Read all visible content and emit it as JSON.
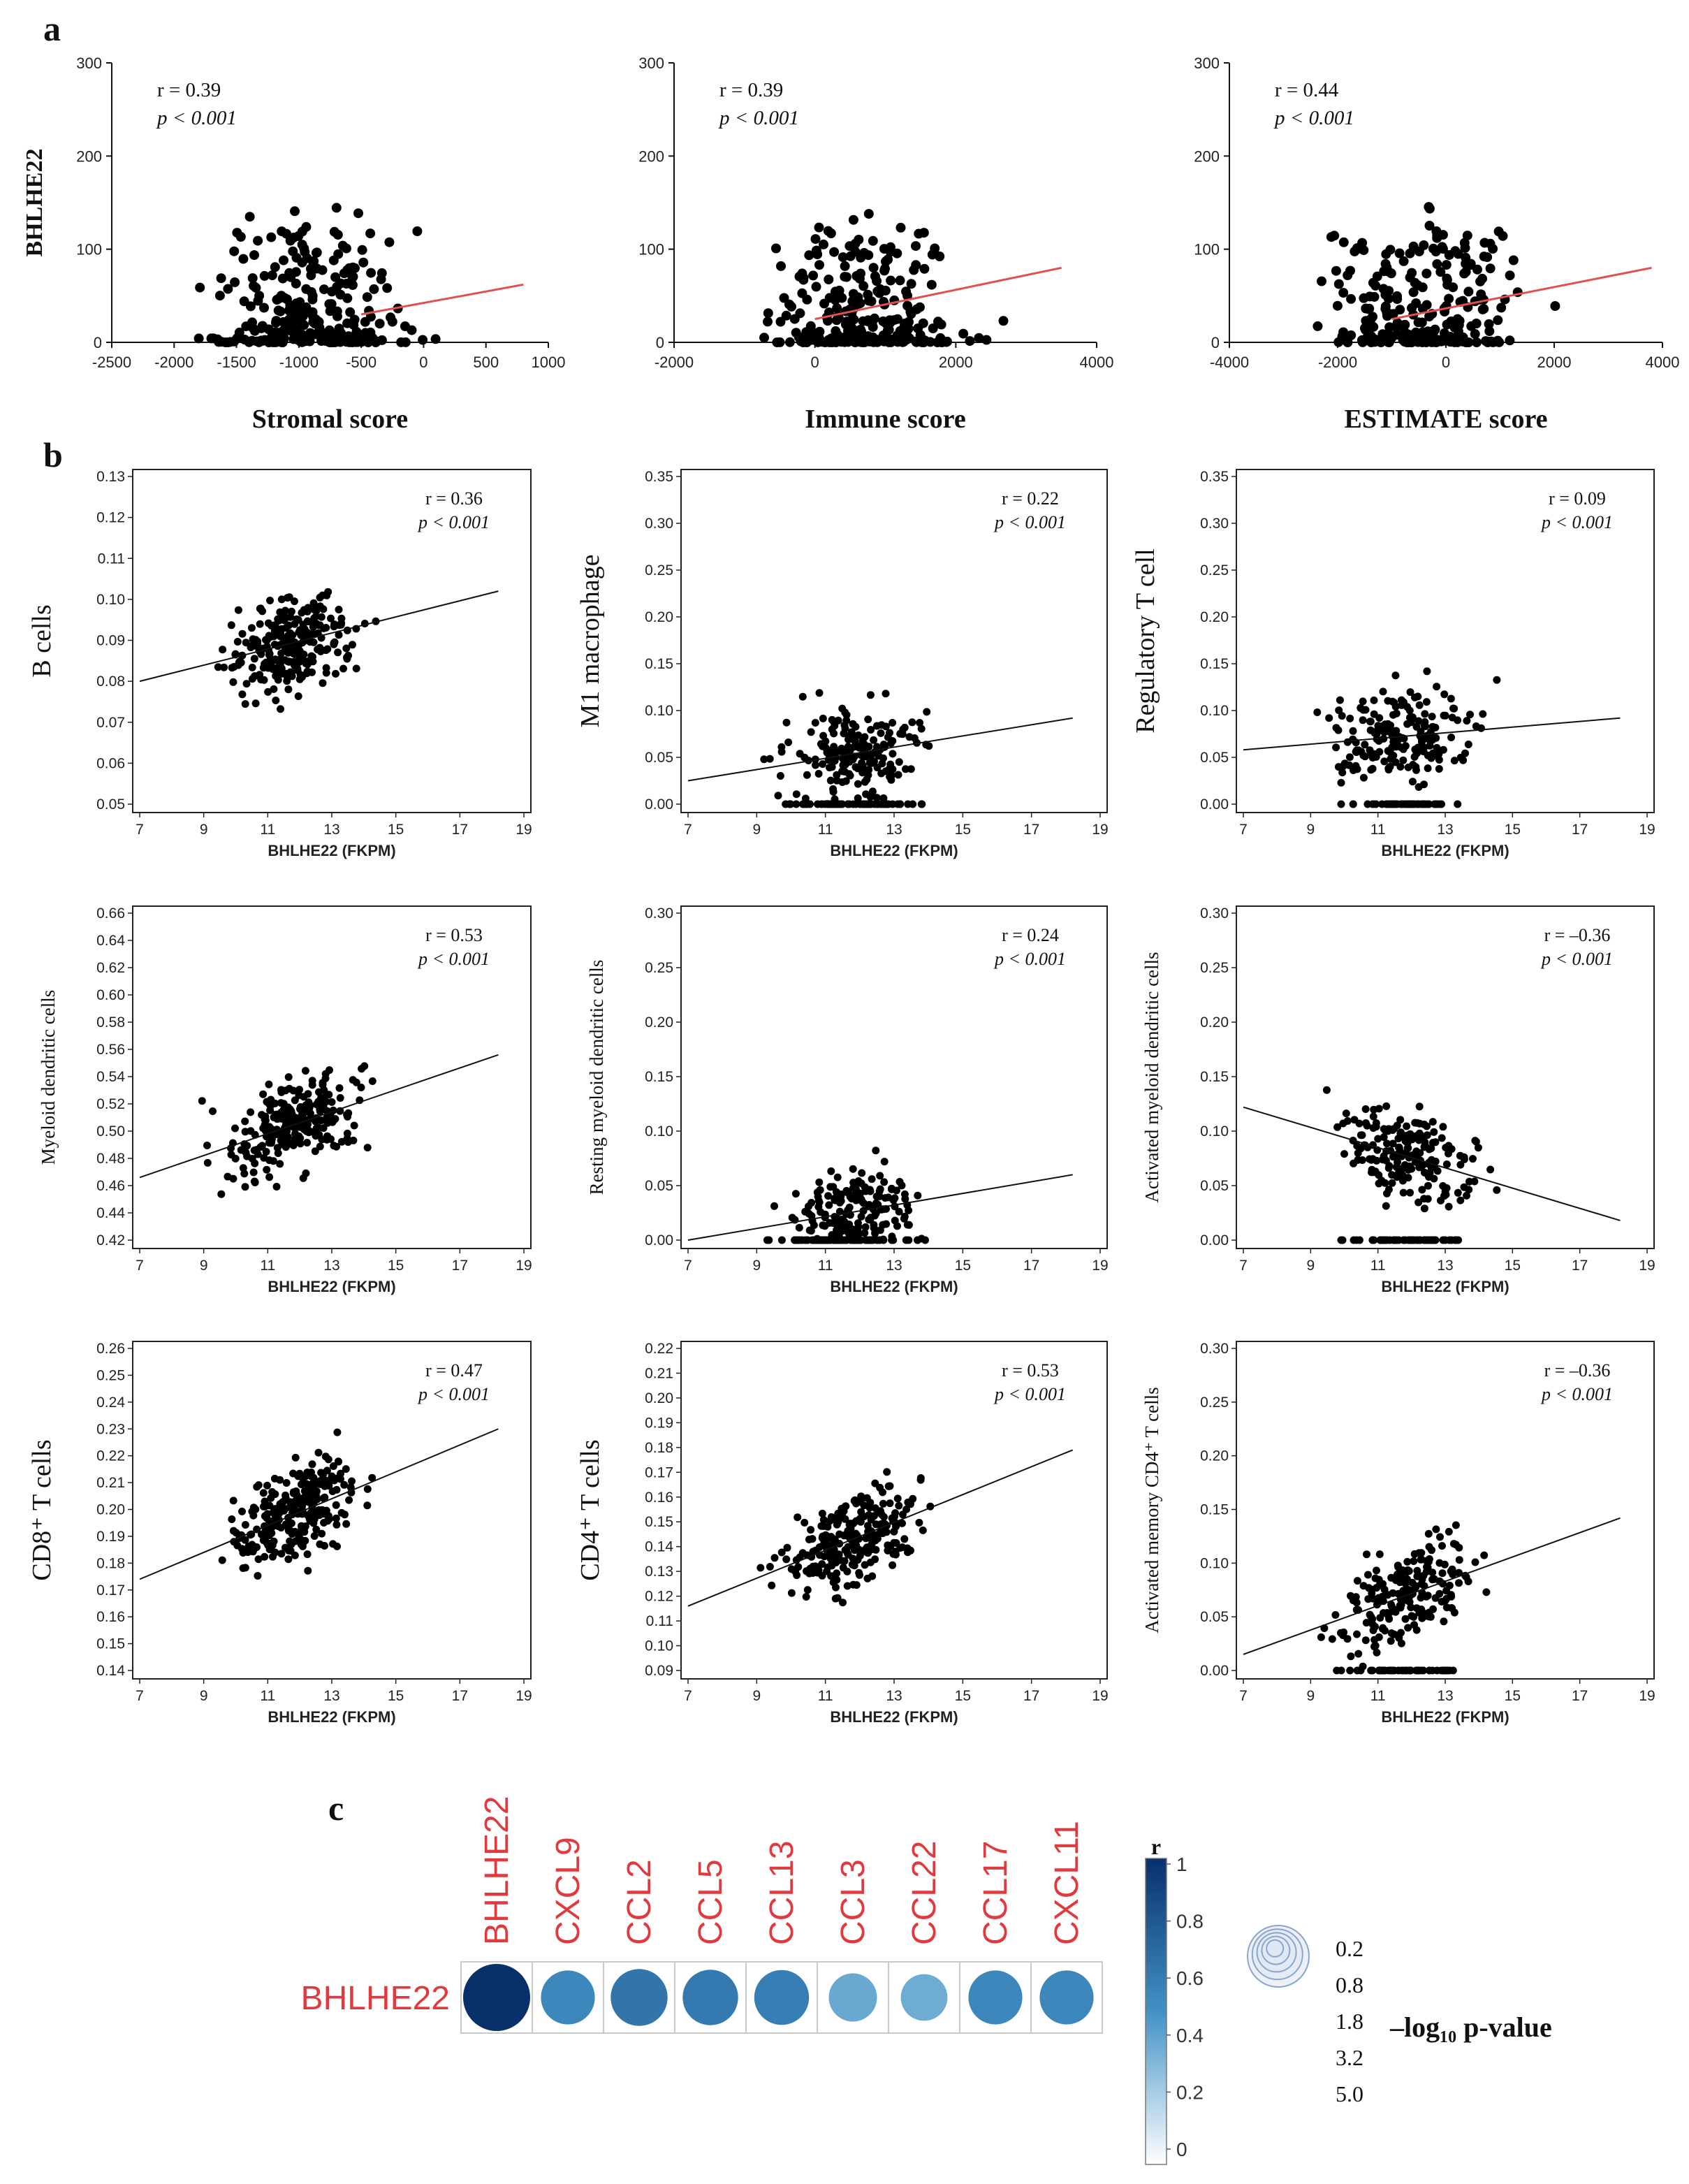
{
  "figure": {
    "panel_labels": [
      "a",
      "b",
      "c"
    ]
  },
  "chart_data": [
    {
      "id": "a1",
      "panel": "a",
      "type": "scatter",
      "xlabel": "Stromal score",
      "ylabel": "BHLHE22",
      "xlim": [
        -2500,
        1000
      ],
      "ylim": [
        0,
        300
      ],
      "xticks": [
        "-2500",
        "-2000",
        "-1500",
        "-1000",
        "-500",
        "0",
        "500",
        "1000"
      ],
      "yticks": [
        "0",
        "100",
        "200",
        "300"
      ],
      "stats": {
        "r": "r = 0.39",
        "p": "p < 0.001"
      },
      "fit": {
        "x": [
          -500,
          800
        ],
        "y": [
          30,
          62
        ],
        "color": "#e05050"
      }
    },
    {
      "id": "a2",
      "panel": "a",
      "type": "scatter",
      "xlabel": "Immune score",
      "ylabel": "",
      "xlim": [
        -2000,
        4000
      ],
      "ylim": [
        0,
        300
      ],
      "xticks": [
        "-2000",
        "0",
        "2000",
        "4000"
      ],
      "yticks": [
        "0",
        "100",
        "200",
        "300"
      ],
      "stats": {
        "r": "r = 0.39",
        "p": "p < 0.001"
      },
      "fit": {
        "x": [
          0,
          3500
        ],
        "y": [
          25,
          80
        ],
        "color": "#e05050"
      }
    },
    {
      "id": "a3",
      "panel": "a",
      "type": "scatter",
      "xlabel": "ESTIMATE score",
      "ylabel": "",
      "xlim": [
        -4000,
        4000
      ],
      "ylim": [
        0,
        300
      ],
      "xticks": [
        "-4000",
        "-2000",
        "0",
        "2000",
        "4000"
      ],
      "yticks": [
        "0",
        "100",
        "200",
        "300"
      ],
      "stats": {
        "r": "r = 0.44",
        "p": "p < 0.001"
      },
      "fit": {
        "x": [
          -1000,
          3800
        ],
        "y": [
          25,
          80
        ],
        "color": "#e05050"
      }
    },
    {
      "id": "b1",
      "panel": "b",
      "type": "scatter",
      "xlabel": "BHLHE22 (FKPM)",
      "ylabel": "B cells",
      "xlim": [
        7,
        19
      ],
      "ylim": [
        0.05,
        0.13
      ],
      "xticks": [
        "7",
        "9",
        "11",
        "13",
        "15",
        "17",
        "19"
      ],
      "yticks": [
        "0.05",
        "0.06",
        "0.07",
        "0.08",
        "0.09",
        "0.10",
        "0.11",
        "0.12",
        "0.13"
      ],
      "stats": {
        "r": "r = 0.36",
        "p": "p < 0.001"
      },
      "fit": {
        "x": [
          7,
          18.2
        ],
        "y": [
          0.08,
          0.102
        ],
        "color": "#111111"
      }
    },
    {
      "id": "b2",
      "panel": "b",
      "type": "scatter",
      "xlabel": "BHLHE22 (FKPM)",
      "ylabel": "M1 macrophage",
      "xlim": [
        7,
        19
      ],
      "ylim": [
        0,
        0.35
      ],
      "xticks": [
        "7",
        "9",
        "11",
        "13",
        "15",
        "17",
        "19"
      ],
      "yticks": [
        "0.00",
        "0.05",
        "0.10",
        "0.15",
        "0.20",
        "0.25",
        "0.30",
        "0.35"
      ],
      "stats": {
        "r": "r = 0.22",
        "p": "p < 0.001"
      },
      "fit": {
        "x": [
          7,
          18.2
        ],
        "y": [
          0.025,
          0.092
        ],
        "color": "#111111"
      }
    },
    {
      "id": "b3",
      "panel": "b",
      "type": "scatter",
      "xlabel": "BHLHE22 (FKPM)",
      "ylabel": "Regulatory T cell",
      "xlim": [
        7,
        19
      ],
      "ylim": [
        0,
        0.35
      ],
      "xticks": [
        "7",
        "9",
        "11",
        "13",
        "15",
        "17",
        "19"
      ],
      "yticks": [
        "0.00",
        "0.05",
        "0.10",
        "0.15",
        "0.20",
        "0.25",
        "0.30",
        "0.35"
      ],
      "stats": {
        "r": "r = 0.09",
        "p": "p < 0.001"
      },
      "fit": {
        "x": [
          7,
          18.2
        ],
        "y": [
          0.058,
          0.092
        ],
        "color": "#111111"
      }
    },
    {
      "id": "b4",
      "panel": "b",
      "type": "scatter",
      "xlabel": "BHLHE22 (FKPM)",
      "ylabel": "Myeloid dendritic cells",
      "xlim": [
        7,
        19
      ],
      "ylim": [
        0.42,
        0.66
      ],
      "xticks": [
        "7",
        "9",
        "11",
        "13",
        "15",
        "17",
        "19"
      ],
      "yticks": [
        "0.42",
        "0.44",
        "0.46",
        "0.48",
        "0.50",
        "0.52",
        "0.54",
        "0.56",
        "0.58",
        "0.60",
        "0.62",
        "0.64",
        "0.66"
      ],
      "stats": {
        "r": "r = 0.53",
        "p": "p < 0.001"
      },
      "fit": {
        "x": [
          7,
          18.2
        ],
        "y": [
          0.466,
          0.556
        ],
        "color": "#111111"
      }
    },
    {
      "id": "b5",
      "panel": "b",
      "type": "scatter",
      "xlabel": "BHLHE22 (FKPM)",
      "ylabel": "Resting myeloid dendritic cells",
      "xlim": [
        7,
        19
      ],
      "ylim": [
        0,
        0.3
      ],
      "xticks": [
        "7",
        "9",
        "11",
        "13",
        "15",
        "17",
        "19"
      ],
      "yticks": [
        "0.00",
        "0.05",
        "0.10",
        "0.15",
        "0.20",
        "0.25",
        "0.30"
      ],
      "stats": {
        "r": "r = 0.24",
        "p": "p < 0.001"
      },
      "fit": {
        "x": [
          7,
          18.2
        ],
        "y": [
          -0.005,
          0.06
        ],
        "color": "#111111"
      }
    },
    {
      "id": "b6",
      "panel": "b",
      "type": "scatter",
      "xlabel": "BHLHE22 (FKPM)",
      "ylabel": "Activated myeloid dendritic cells",
      "xlim": [
        7,
        19
      ],
      "ylim": [
        0,
        0.3
      ],
      "xticks": [
        "7",
        "9",
        "11",
        "13",
        "15",
        "17",
        "19"
      ],
      "yticks": [
        "0.00",
        "0.05",
        "0.10",
        "0.15",
        "0.20",
        "0.25",
        "0.30"
      ],
      "stats": {
        "r": "r = –0.36",
        "p": "p < 0.001"
      },
      "fit": {
        "x": [
          7,
          18.2
        ],
        "y": [
          0.122,
          0.018
        ],
        "color": "#111111"
      }
    },
    {
      "id": "b7",
      "panel": "b",
      "type": "scatter",
      "xlabel": "BHLHE22 (FKPM)",
      "ylabel": "CD8⁺ T cells",
      "xlim": [
        7,
        19
      ],
      "ylim": [
        0.14,
        0.26
      ],
      "xticks": [
        "7",
        "9",
        "11",
        "13",
        "15",
        "17",
        "19"
      ],
      "yticks": [
        "0.14",
        "0.15",
        "0.16",
        "0.17",
        "0.18",
        "0.19",
        "0.20",
        "0.21",
        "0.22",
        "0.23",
        "0.24",
        "0.25",
        "0.26"
      ],
      "stats": {
        "r": "r = 0.47",
        "p": "p < 0.001"
      },
      "fit": {
        "x": [
          7,
          18.2
        ],
        "y": [
          0.174,
          0.23
        ],
        "color": "#111111"
      }
    },
    {
      "id": "b8",
      "panel": "b",
      "type": "scatter",
      "xlabel": "BHLHE22 (FKPM)",
      "ylabel": "CD4⁺ T cells",
      "xlim": [
        7,
        19
      ],
      "ylim": [
        0.09,
        0.22
      ],
      "xticks": [
        "7",
        "9",
        "11",
        "13",
        "15",
        "17",
        "19"
      ],
      "yticks": [
        "0.09",
        "0.10",
        "0.11",
        "0.12",
        "0.13",
        "0.14",
        "0.15",
        "0.16",
        "0.17",
        "0.18",
        "0.19",
        "0.20",
        "0.21",
        "0.22"
      ],
      "stats": {
        "r": "r = 0.53",
        "p": "p < 0.001"
      },
      "fit": {
        "x": [
          7,
          18.2
        ],
        "y": [
          0.116,
          0.179
        ],
        "color": "#111111"
      }
    },
    {
      "id": "b9",
      "panel": "b",
      "type": "scatter",
      "xlabel": "BHLHE22 (FKPM)",
      "ylabel": "Activated memory CD4⁺ T cells",
      "xlim": [
        7,
        19
      ],
      "ylim": [
        0,
        0.3
      ],
      "xticks": [
        "7",
        "9",
        "11",
        "13",
        "15",
        "17",
        "19"
      ],
      "yticks": [
        "0.00",
        "0.05",
        "0.10",
        "0.15",
        "0.20",
        "0.25",
        "0.30"
      ],
      "stats": {
        "r": "r = –0.36",
        "p": "p < 0.001"
      },
      "fit": {
        "x": [
          7,
          18.2
        ],
        "y": [
          0.015,
          0.142
        ],
        "color": "#111111"
      }
    },
    {
      "id": "c",
      "panel": "c",
      "type": "heatmap",
      "row_label": "BHLHE22",
      "columns": [
        "BHLHE22",
        "CXCL9",
        "CCL2",
        "CCL5",
        "CCL13",
        "CCL3",
        "CCL22",
        "CCL17",
        "CXCL11"
      ],
      "r_values": [
        1.0,
        0.55,
        0.65,
        0.62,
        0.6,
        0.4,
        0.38,
        0.55,
        0.55
      ],
      "neg_log10_p": [
        5.0,
        3.2,
        3.6,
        3.4,
        3.3,
        2.4,
        2.2,
        3.2,
        3.2
      ],
      "colorbar": {
        "title": "r",
        "ticks": [
          "0",
          "0.2",
          "0.4",
          "0.6",
          "0.8",
          "1"
        ],
        "low_color": "#ffffff",
        "high_color": "#08306b"
      },
      "size_legend": {
        "title": "–log₁₀ p-value",
        "values": [
          "0.2",
          "0.8",
          "1.8",
          "3.2",
          "5.0"
        ]
      }
    }
  ]
}
